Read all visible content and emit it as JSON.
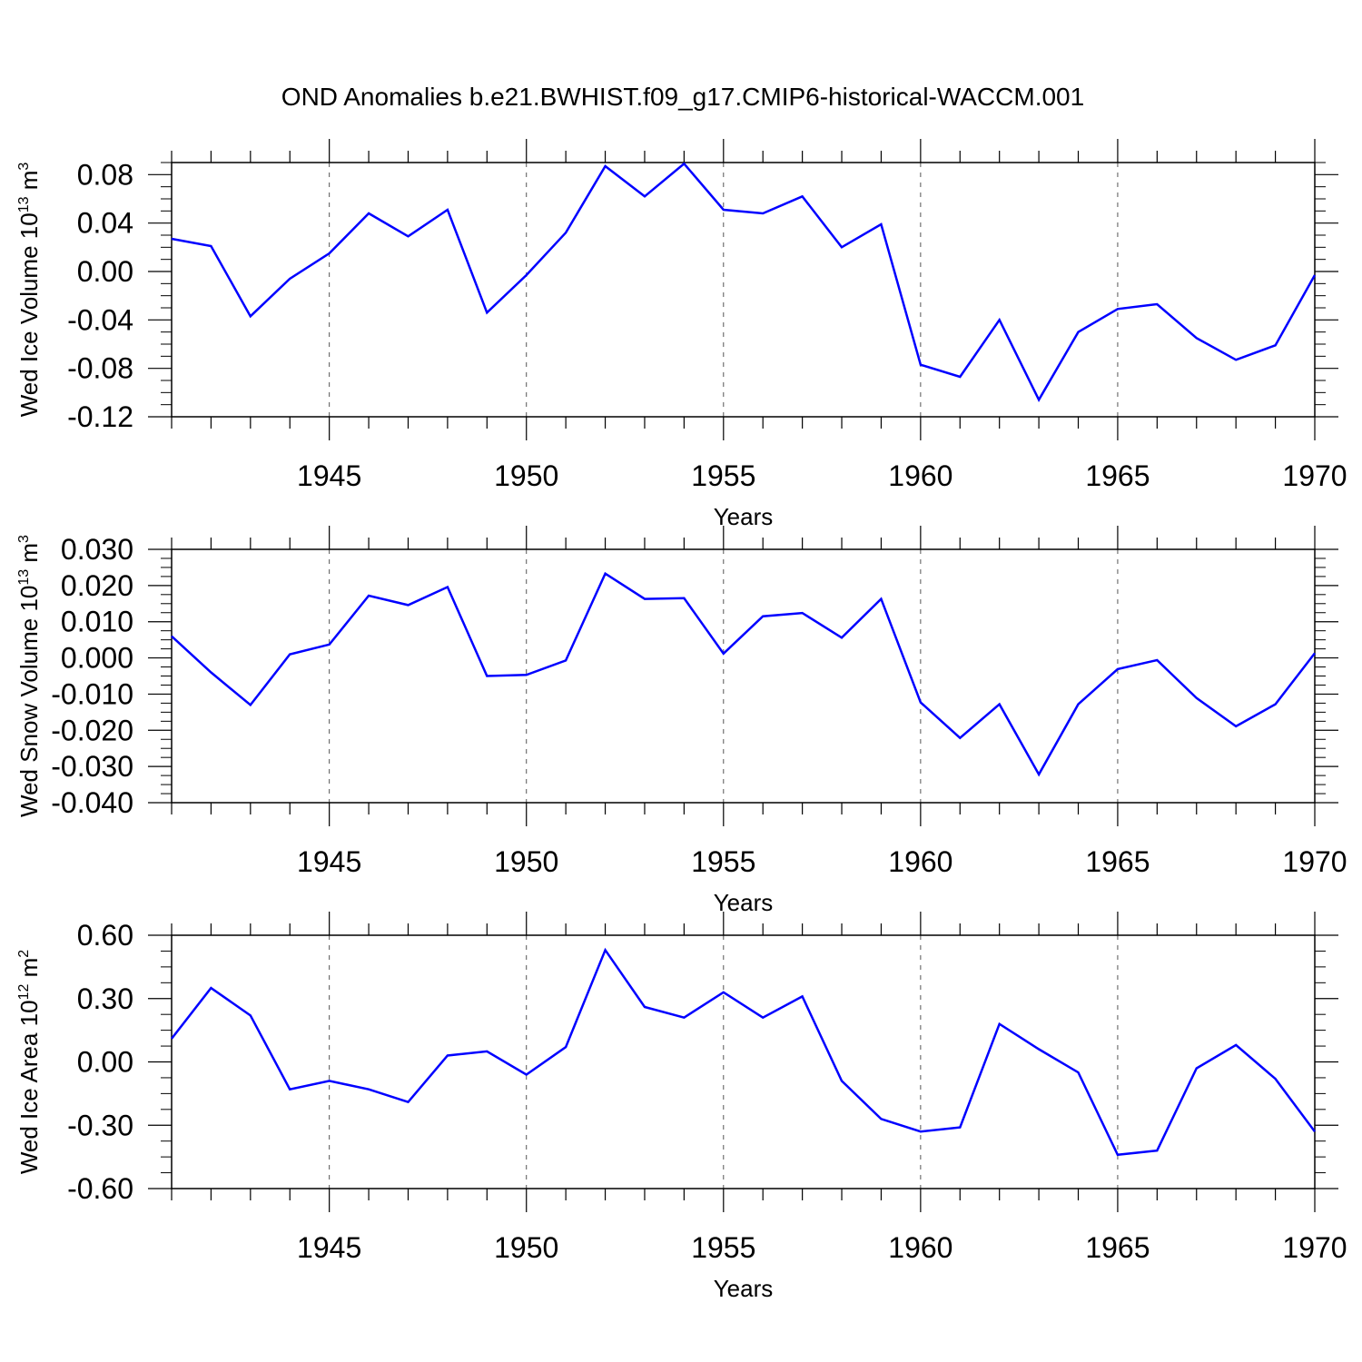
{
  "figure": {
    "title": "OND Anomalies b.e21.BWHIST.f09_g17.CMIP6-historical-WACCM.001",
    "line_color": "#0000ff"
  },
  "chart_data": [
    {
      "type": "line",
      "ylabel": "Wed Ice Volume 10",
      "ylabel_exp": "13",
      "ylabel_unit": " m",
      "ylabel_unit_exp": "3",
      "xlabel": "Years",
      "xlim": [
        1941,
        1970
      ],
      "ylim": [
        -0.12,
        0.09
      ],
      "yticks": [
        -0.12,
        -0.08,
        -0.04,
        0.0,
        0.04,
        0.08
      ],
      "ytick_labels": [
        "-0.12",
        "-0.08",
        "-0.04",
        "0.00",
        "0.04",
        "0.08"
      ],
      "xticks": [
        1945,
        1950,
        1955,
        1960,
        1965,
        1970
      ],
      "xtick_labels": [
        "1945",
        "1950",
        "1955",
        "1960",
        "1965",
        "1970"
      ],
      "grid": "vertical dashed at major x ticks",
      "series": [
        {
          "x": [
            1941,
            1942,
            1943,
            1944,
            1945,
            1946,
            1947,
            1948,
            1949,
            1950,
            1951,
            1952,
            1953,
            1954,
            1955,
            1956,
            1957,
            1958,
            1959,
            1960,
            1961,
            1962,
            1963,
            1964,
            1965,
            1966,
            1967,
            1968,
            1969,
            1970
          ],
          "values": [
            0.027,
            0.021,
            -0.037,
            -0.006,
            0.015,
            0.048,
            0.029,
            0.051,
            -0.034,
            -0.003,
            0.032,
            0.087,
            0.062,
            0.089,
            0.051,
            0.048,
            0.062,
            0.02,
            0.039,
            -0.077,
            -0.087,
            -0.04,
            -0.106,
            -0.05,
            -0.031,
            -0.027,
            -0.055,
            -0.073,
            -0.061,
            -0.003
          ]
        }
      ]
    },
    {
      "type": "line",
      "ylabel": "Wed Snow Volume 10",
      "ylabel_exp": "13",
      "ylabel_unit": " m",
      "ylabel_unit_exp": "3",
      "xlabel": "Years",
      "xlim": [
        1941,
        1970
      ],
      "ylim": [
        -0.04,
        0.03
      ],
      "yticks": [
        -0.04,
        -0.03,
        -0.02,
        -0.01,
        0.0,
        0.01,
        0.02,
        0.03
      ],
      "ytick_labels": [
        "-0.040",
        "-0.030",
        "-0.020",
        "-0.010",
        "0.000",
        "0.010",
        "0.020",
        "0.030"
      ],
      "xticks": [
        1945,
        1950,
        1955,
        1960,
        1965,
        1970
      ],
      "xtick_labels": [
        "1945",
        "1950",
        "1955",
        "1960",
        "1965",
        "1970"
      ],
      "grid": "vertical dashed at major x ticks",
      "series": [
        {
          "x": [
            1941,
            1942,
            1943,
            1944,
            1945,
            1946,
            1947,
            1948,
            1949,
            1950,
            1951,
            1952,
            1953,
            1954,
            1955,
            1956,
            1957,
            1958,
            1959,
            1960,
            1961,
            1962,
            1963,
            1964,
            1965,
            1966,
            1967,
            1968,
            1969,
            1970
          ],
          "values": [
            0.006,
            -0.004,
            -0.013,
            0.001,
            0.0037,
            0.0172,
            0.0146,
            0.0196,
            -0.005,
            -0.0047,
            -0.0007,
            0.0233,
            0.0163,
            0.0165,
            0.0012,
            0.0115,
            0.0124,
            0.0056,
            0.0163,
            -0.0123,
            -0.0221,
            -0.0128,
            -0.0322,
            -0.0128,
            -0.0031,
            -0.0006,
            -0.0111,
            -0.0189,
            -0.0128,
            0.0013
          ]
        }
      ]
    },
    {
      "type": "line",
      "ylabel": "Wed Ice Area 10",
      "ylabel_exp": "12",
      "ylabel_unit": " m",
      "ylabel_unit_exp": "2",
      "xlabel": "Years",
      "xlim": [
        1941,
        1970
      ],
      "ylim": [
        -0.6,
        0.6
      ],
      "yticks": [
        -0.6,
        -0.3,
        0.0,
        0.3,
        0.6
      ],
      "ytick_labels": [
        "-0.60",
        "-0.30",
        "0.00",
        "0.30",
        "0.60"
      ],
      "xticks": [
        1945,
        1950,
        1955,
        1960,
        1965,
        1970
      ],
      "xtick_labels": [
        "1945",
        "1950",
        "1955",
        "1960",
        "1965",
        "1970"
      ],
      "grid": "vertical dashed at major x ticks",
      "series": [
        {
          "x": [
            1941,
            1942,
            1943,
            1944,
            1945,
            1946,
            1947,
            1948,
            1949,
            1950,
            1951,
            1952,
            1953,
            1954,
            1955,
            1956,
            1957,
            1958,
            1959,
            1960,
            1961,
            1962,
            1963,
            1964,
            1965,
            1966,
            1967,
            1968,
            1969,
            1970
          ],
          "values": [
            0.11,
            0.35,
            0.22,
            -0.13,
            -0.09,
            -0.13,
            -0.19,
            0.03,
            0.05,
            -0.06,
            0.07,
            0.53,
            0.26,
            0.21,
            0.33,
            0.21,
            0.31,
            -0.09,
            -0.27,
            -0.33,
            -0.31,
            0.18,
            0.06,
            -0.05,
            -0.44,
            -0.42,
            -0.03,
            0.08,
            -0.08,
            -0.33
          ]
        }
      ]
    }
  ]
}
